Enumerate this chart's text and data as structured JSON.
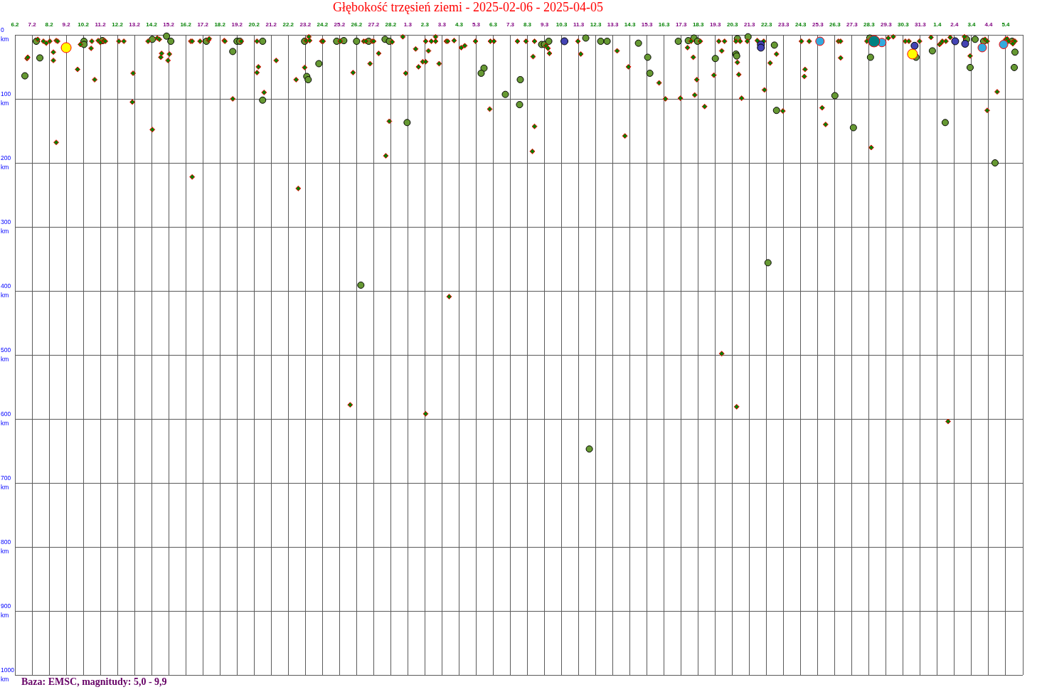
{
  "chart_data": {
    "type": "bubble",
    "title": "Głębokość trzęsień ziemi - 2025-02-06 - 2025-04-05",
    "annotations": [
      "Baza: EMSC, magnitudy: 5,0 - 9,9"
    ],
    "xlim": [
      "2025-02-06",
      "2025-04-06"
    ],
    "xticks": [
      {
        "value": "2025-02-06",
        "label": "6.2"
      },
      {
        "value": "2025-02-07",
        "label": "7.2"
      },
      {
        "value": "2025-02-08",
        "label": "8.2"
      },
      {
        "value": "2025-02-09",
        "label": "9.2"
      },
      {
        "value": "2025-02-10",
        "label": "10.2"
      },
      {
        "value": "2025-02-11",
        "label": "11.2"
      },
      {
        "value": "2025-02-12",
        "label": "12.2"
      },
      {
        "value": "2025-02-13",
        "label": "13.2"
      },
      {
        "value": "2025-02-14",
        "label": "14.2"
      },
      {
        "value": "2025-02-15",
        "label": "15.2"
      },
      {
        "value": "2025-02-16",
        "label": "16.2"
      },
      {
        "value": "2025-02-17",
        "label": "17.2"
      },
      {
        "value": "2025-02-18",
        "label": "18.2"
      },
      {
        "value": "2025-02-19",
        "label": "19.2"
      },
      {
        "value": "2025-02-20",
        "label": "20.2"
      },
      {
        "value": "2025-02-21",
        "label": "21.2"
      },
      {
        "value": "2025-02-22",
        "label": "22.2"
      },
      {
        "value": "2025-02-23",
        "label": "23.2"
      },
      {
        "value": "2025-02-24",
        "label": "24.2"
      },
      {
        "value": "2025-02-25",
        "label": "25.2"
      },
      {
        "value": "2025-02-26",
        "label": "26.2"
      },
      {
        "value": "2025-02-27",
        "label": "27.2"
      },
      {
        "value": "2025-02-28",
        "label": "28.2"
      },
      {
        "value": "2025-03-01",
        "label": "1.3"
      },
      {
        "value": "2025-03-02",
        "label": "2.3"
      },
      {
        "value": "2025-03-03",
        "label": "3.3"
      },
      {
        "value": "2025-03-04",
        "label": "4.3"
      },
      {
        "value": "2025-03-05",
        "label": "5.3"
      },
      {
        "value": "2025-03-06",
        "label": "6.3"
      },
      {
        "value": "2025-03-07",
        "label": "7.3"
      },
      {
        "value": "2025-03-08",
        "label": "8.3"
      },
      {
        "value": "2025-03-09",
        "label": "9.3"
      },
      {
        "value": "2025-03-10",
        "label": "10.3"
      },
      {
        "value": "2025-03-11",
        "label": "11.3"
      },
      {
        "value": "2025-03-12",
        "label": "12.3"
      },
      {
        "value": "2025-03-13",
        "label": "13.3"
      },
      {
        "value": "2025-03-14",
        "label": "14.3"
      },
      {
        "value": "2025-03-15",
        "label": "15.3"
      },
      {
        "value": "2025-03-16",
        "label": "16.3"
      },
      {
        "value": "2025-03-17",
        "label": "17.3"
      },
      {
        "value": "2025-03-18",
        "label": "18.3"
      },
      {
        "value": "2025-03-19",
        "label": "19.3"
      },
      {
        "value": "2025-03-20",
        "label": "20.3"
      },
      {
        "value": "2025-03-21",
        "label": "21.3"
      },
      {
        "value": "2025-03-22",
        "label": "22.3"
      },
      {
        "value": "2025-03-23",
        "label": "23.3"
      },
      {
        "value": "2025-03-24",
        "label": "24.3"
      },
      {
        "value": "2025-03-25",
        "label": "25.3"
      },
      {
        "value": "2025-03-26",
        "label": "26.3"
      },
      {
        "value": "2025-03-27",
        "label": "27.3"
      },
      {
        "value": "2025-03-28",
        "label": "28.3"
      },
      {
        "value": "2025-03-29",
        "label": "29.3"
      },
      {
        "value": "2025-03-30",
        "label": "30.3"
      },
      {
        "value": "2025-03-31",
        "label": "31.3"
      },
      {
        "value": "2025-04-01",
        "label": "1.4"
      },
      {
        "value": "2025-04-02",
        "label": "2.4"
      },
      {
        "value": "2025-04-03",
        "label": "3.4"
      },
      {
        "value": "2025-04-04",
        "label": "4.4"
      },
      {
        "value": "2025-04-05",
        "label": "5.4"
      },
      {
        "value": "2025-04-06",
        "label": null
      }
    ],
    "ylim": [
      1000,
      0
    ],
    "yticks": [
      {
        "value": 0,
        "label": "0 km"
      },
      {
        "value": 100,
        "label": "100 km"
      },
      {
        "value": 200,
        "label": "200 km"
      },
      {
        "value": 300,
        "label": "300 km"
      },
      {
        "value": 400,
        "label": "400 km"
      },
      {
        "value": 500,
        "label": "500 km"
      },
      {
        "value": 600,
        "label": "600 km"
      },
      {
        "value": 700,
        "label": "700 km"
      },
      {
        "value": 800,
        "label": "800 km"
      },
      {
        "value": 900,
        "label": "900 km"
      },
      {
        "value": 1000,
        "label": "1000 km"
      }
    ],
    "grid": true,
    "series": [
      {
        "color": "#669933",
        "marker": "circle",
        "x": [
          "2025-02-06T14:00",
          "2025-02-07T06:00",
          "2025-02-07T11:00",
          "2025-02-10T01:00",
          "2025-02-10T01:00",
          "2025-02-11T03:00",
          "2025-02-14T01:00",
          "2025-02-14T21:00",
          "2025-02-15T03:00",
          "2025-02-17T05:00",
          "2025-02-18T18:00",
          "2025-02-19T00:00",
          "2025-02-19T04:00",
          "2025-02-20T12:00",
          "2025-02-20T12:00",
          "2025-02-22T23:00",
          "2025-02-23T02:00",
          "2025-02-23T04:00",
          "2025-02-23T19:00",
          "2025-02-24T20:00",
          "2025-02-25T06:00",
          "2025-02-26T00:00",
          "2025-02-26T17:00",
          "2025-02-26T06:00",
          "2025-02-27T16:00",
          "2025-02-27T22:00",
          "2025-02-28T23:00",
          "2025-03-05T11:00",
          "2025-03-05T07:00",
          "2025-03-06T17:00",
          "2025-03-07T14:00",
          "2025-03-07T13:00",
          "2025-03-08T20:00",
          "2025-03-09T00:00",
          "2025-03-09T06:00",
          "2025-03-11T10:00",
          "2025-03-11T15:00",
          "2025-03-12T07:00",
          "2025-03-12T16:00",
          "2025-03-14T12:00",
          "2025-03-15T01:00",
          "2025-03-15T04:00",
          "2025-03-16T20:00",
          "2025-03-17T10:00",
          "2025-03-17T18:00",
          "2025-03-17T23:00",
          "2025-03-19T00:00",
          "2025-03-20T07:00",
          "2025-03-20T05:00",
          "2025-03-20T06:00",
          "2025-03-20T22:00",
          "2025-03-22T11:00",
          "2025-03-22T14:00",
          "2025-03-22T02:00",
          "2025-03-26T00:00",
          "2025-03-27T02:00",
          "2025-03-28T01:00",
          "2025-03-28T02:00",
          "2025-03-30T18:00",
          "2025-03-31T17:00",
          "2025-04-01T11:00",
          "2025-04-02T17:00",
          "2025-04-03T05:00",
          "2025-04-02T22:00",
          "2025-04-03T17:00",
          "2025-04-05T09:00",
          "2025-04-05T13:00",
          "2025-04-05T12:00",
          "2025-04-04T09:00"
        ],
        "values": [
          64,
          10,
          36,
          10,
          15,
          9,
          7,
          2,
          10,
          10,
          26,
          10,
          10,
          10,
          102,
          10,
          65,
          70,
          45,
          10,
          9,
          10,
          10,
          391,
          7,
          10,
          137,
          52,
          60,
          93,
          70,
          109,
          15,
          15,
          10,
          5,
          647,
          10,
          10,
          13,
          35,
          60,
          10,
          9,
          5,
          10,
          37,
          6,
          30,
          33,
          3,
          16,
          118,
          356,
          95,
          145,
          5,
          35,
          35,
          25,
          137,
          7,
          7,
          51,
          10,
          10,
          27,
          51,
          200
        ],
        "sizes": [
          0.32,
          0.32,
          0.32,
          0.32,
          0.32,
          0.32,
          0.32,
          0.32,
          0.32,
          0.32,
          0.32,
          0.32,
          0.32,
          0.32,
          0.32,
          0.32,
          0.32,
          0.32,
          0.32,
          0.32,
          0.32,
          0.32,
          0.32,
          0.32,
          0.32,
          0.32,
          0.32,
          0.32,
          0.32,
          0.32,
          0.32,
          0.32,
          0.32,
          0.32,
          0.32,
          0.32,
          0.32,
          0.32,
          0.32,
          0.32,
          0.32,
          0.32,
          0.32,
          0.32,
          0.32,
          0.32,
          0.32,
          0.32,
          0.32,
          0.32,
          0.32,
          0.32,
          0.32,
          0.32,
          0.32,
          0.32,
          0.32,
          0.32,
          0.32,
          0.32,
          0.32,
          0.32,
          0.32,
          0.32,
          0.32,
          0.32,
          0.32,
          0.32,
          0.32
        ]
      },
      {
        "color": "#008000",
        "marker": "diamond",
        "x": [
          "2025-02-06T17:00",
          "2025-02-06T18:00",
          "2025-02-07T08:00",
          "2025-02-07T16:00",
          "2025-02-07T20:00",
          "2025-02-08T01:00",
          "2025-02-08T06:00",
          "2025-02-08T06:00",
          "2025-02-08T10:00",
          "2025-02-08T12:00",
          "2025-02-08T10:00",
          "2025-02-09T16:00",
          "2025-02-09T20:00",
          "2025-02-10T11:00",
          "2025-02-10T12:00",
          "2025-02-10T16:00",
          "2025-02-10T21:00",
          "2025-02-11T00:00",
          "2025-02-11T05:00",
          "2025-02-11T07:00",
          "2025-02-12T02:00",
          "2025-02-12T09:00",
          "2025-02-12T22:00",
          "2025-02-12T21:00",
          "2025-02-13T19:00",
          "2025-02-14T08:00",
          "2025-02-14T11:00",
          "2025-02-14T14:00",
          "2025-02-14T13:00",
          "2025-02-14T01:00",
          "2025-02-14T23:00",
          "2025-02-15T01:00",
          "2025-02-16T09:00",
          "2025-02-16T07:00",
          "2025-02-16T09:00",
          "2025-02-16T20:00",
          "2025-02-17T08:00",
          "2025-02-17T09:00",
          "2025-02-18T06:00",
          "2025-02-18T07:00",
          "2025-02-18T18:00",
          "2025-02-19T06:00",
          "2025-02-20T04:00",
          "2025-02-20T04:00",
          "2025-02-20T06:00",
          "2025-02-20T14:00",
          "2025-02-21T07:00",
          "2025-02-22T11:00",
          "2025-02-22T14:00",
          "2025-02-22T23:00",
          "2025-02-23T01:00",
          "2025-02-23T05:00",
          "2025-02-23T06:00",
          "2025-02-23T23:00",
          "2025-02-24T01:00",
          "2025-02-25T01:00",
          "2025-02-25T19:00",
          "2025-02-25T15:00",
          "2025-02-26T10:00",
          "2025-02-26T13:00",
          "2025-02-26T22:00",
          "2025-02-27T00:00",
          "2025-02-26T19:00",
          "2025-02-27T07:00",
          "2025-02-28T02:00",
          "2025-02-27T17:00",
          "2025-02-28T17:00",
          "2025-02-28T21:00",
          "2025-02-27T22:00",
          "2025-03-01T11:00",
          "2025-03-01T15:00",
          "2025-03-01T21:00",
          "2025-03-02T01:00",
          "2025-03-02T01:00",
          "2025-03-02T05:00",
          "2025-03-02T09:00",
          "2025-03-02T15:00",
          "2025-03-02T15:00",
          "2025-03-02T20:00",
          "2025-03-02T01:00",
          "2025-03-03T06:00",
          "2025-03-03T08:00",
          "2025-03-03T17:00",
          "2025-03-03T10:00",
          "2025-03-04T03:00",
          "2025-03-04T08:00",
          "2025-03-04T23:00",
          "2025-03-05T20:00",
          "2025-03-06T01:00",
          "2025-03-05T19:00",
          "2025-03-07T10:00",
          "2025-03-07T22:00",
          "2025-03-08T08:00",
          "2025-03-08T10:00",
          "2025-03-08T10:00",
          "2025-03-08T07:00",
          "2025-03-09T02:00",
          "2025-03-09T05:00",
          "2025-03-09T07:00",
          "2025-03-10T23:00",
          "2025-03-11T03:00",
          "2025-03-13T06:00",
          "2025-03-13T17:00",
          "2025-03-13T22:00",
          "2025-03-15T17:00",
          "2025-03-16T02:00",
          "2025-03-16T23:00",
          "2025-03-17T09:00",
          "2025-03-17T14:00",
          "2025-03-17T17:00",
          "2025-03-17T19:00",
          "2025-03-17T22:00",
          "2025-03-18T03:00",
          "2025-03-18T09:00",
          "2025-03-18T22:00",
          "2025-03-19T05:00",
          "2025-03-19T13:00",
          "2025-03-19T09:00",
          "2025-03-19T09:00",
          "2025-03-20T05:00",
          "2025-03-20T11:00",
          "2025-03-20T07:00",
          "2025-03-20T09:00",
          "2025-03-20T13:00",
          "2025-03-20T06:00",
          "2025-03-20T21:00",
          "2025-03-21T11:00",
          "2025-03-21T20:00",
          "2025-03-21T21:00",
          "2025-03-22T14:00",
          "2025-03-22T05:00",
          "2025-03-22T23:00",
          "2025-03-24T01:00",
          "2025-03-24T12:00",
          "2025-03-24T06:00",
          "2025-03-24T05:00",
          "2025-03-25T06:00",
          "2025-03-25T11:00",
          "2025-03-26T05:00",
          "2025-03-26T08:00",
          "2025-03-26T08:00",
          "2025-03-28T03:00",
          "2025-03-27T21:00",
          "2025-03-29T03:00",
          "2025-03-29T10:00",
          "2025-03-30T03:00",
          "2025-03-30T08:00",
          "2025-03-30T23:00",
          "2025-03-31T15:00",
          "2025-04-01T03:00",
          "2025-04-01T05:00",
          "2025-04-01T07:00",
          "2025-04-01T12:00",
          "2025-04-01T18:00",
          "2025-04-01T15:00",
          "2025-04-02T14:00",
          "2025-04-02T22:00",
          "2025-04-03T19:00",
          "2025-04-03T22:00",
          "2025-04-04T12:00",
          "2025-04-03T22:00",
          "2025-04-05T00:00",
          "2025-04-05T02:00",
          "2025-04-05T04:00",
          "2025-04-05T11:00",
          "2025-04-05T13:00",
          "2025-04-05T10:00"
        ],
        "values": [
          37,
          35,
          7,
          10,
          13,
          10,
          27,
          40,
          9,
          10,
          168,
          54,
          15,
          21,
          10,
          70,
          9,
          12,
          9,
          10,
          10,
          10,
          60,
          105,
          10,
          5,
          7,
          29,
          35,
          148,
          40,
          30,
          222,
          10,
          10,
          10,
          8,
          6,
          9,
          10,
          100,
          10,
          10,
          59,
          50,
          90,
          40,
          70,
          240,
          51,
          9,
          3,
          9,
          10,
          10,
          10,
          59,
          578,
          10,
          10,
          10,
          10,
          45,
          29,
          11,
          189,
          3,
          60,
          135,
          22,
          50,
          42,
          42,
          10,
          25,
          10,
          3,
          10,
          45,
          592,
          10,
          10,
          9,
          409,
          20,
          17,
          10,
          10,
          10,
          116,
          10,
          10,
          34,
          10,
          143,
          182,
          17,
          21,
          29,
          10,
          30,
          25,
          158,
          50,
          75,
          100,
          99,
          20,
          10,
          35,
          94,
          70,
          10,
          112,
          63,
          10,
          10,
          25,
          498,
          10,
          10,
          43,
          62,
          99,
          581,
          10,
          9,
          10,
          86,
          30,
          44,
          119,
          10,
          10,
          54,
          65,
          114,
          140,
          10,
          10,
          36,
          176,
          10,
          5,
          3,
          10,
          10,
          10,
          4,
          15,
          13,
          10,
          10,
          4,
          604,
          3,
          33,
          7,
          10,
          89,
          118,
          7,
          6,
          10,
          10,
          10,
          14
        ],
        "sizes": [
          0.19,
          0.19,
          0.19,
          0.19,
          0.19,
          0.19,
          0.19,
          0.19,
          0.19,
          0.19,
          0.19,
          0.19,
          0.19,
          0.19,
          0.19,
          0.19,
          0.19,
          0.19,
          0.19,
          0.19,
          0.19,
          0.19,
          0.19,
          0.19,
          0.19,
          0.19,
          0.19,
          0.19,
          0.19,
          0.19,
          0.19,
          0.19,
          0.19,
          0.19,
          0.19,
          0.19,
          0.19,
          0.19,
          0.19,
          0.19,
          0.19,
          0.19,
          0.19,
          0.19,
          0.19,
          0.19,
          0.19,
          0.19,
          0.19,
          0.19,
          0.19,
          0.19,
          0.19,
          0.19,
          0.19,
          0.19,
          0.19,
          0.19,
          0.19,
          0.19,
          0.19,
          0.19,
          0.19,
          0.19,
          0.19,
          0.19,
          0.19,
          0.19,
          0.19,
          0.19,
          0.19,
          0.19,
          0.19,
          0.19,
          0.19,
          0.19,
          0.19,
          0.19,
          0.19,
          0.19,
          0.19,
          0.19,
          0.19,
          0.19,
          0.19,
          0.19,
          0.19,
          0.19,
          0.19,
          0.19,
          0.19,
          0.19,
          0.19,
          0.19,
          0.19,
          0.19,
          0.19,
          0.19,
          0.19,
          0.19,
          0.19,
          0.19,
          0.19,
          0.19,
          0.19,
          0.19,
          0.19,
          0.19,
          0.19,
          0.19,
          0.19,
          0.19,
          0.19,
          0.19,
          0.19,
          0.19,
          0.19,
          0.19,
          0.19,
          0.19,
          0.19,
          0.19,
          0.19,
          0.19,
          0.19,
          0.19,
          0.19,
          0.19,
          0.19,
          0.19,
          0.19,
          0.19,
          0.19,
          0.19,
          0.19,
          0.19,
          0.19,
          0.19,
          0.19,
          0.19,
          0.19,
          0.19,
          0.19,
          0.19,
          0.19,
          0.19,
          0.19,
          0.19,
          0.19,
          0.19,
          0.19,
          0.19,
          0.19,
          0.19,
          0.19,
          0.19,
          0.19,
          0.19,
          0.19,
          0.19,
          0.19,
          0.19,
          0.19,
          0.19,
          0.19,
          0.19,
          0.19
        ]
      },
      {
        "color": "#4444b4",
        "marker": "circle",
        "x": [
          "2025-03-10T04:00",
          "2025-03-21T16:00",
          "2025-03-21T16:00",
          "2025-03-30T16:00",
          "2025-04-02T01:00",
          "2025-04-02T15:00"
        ],
        "values": [
          10,
          15,
          20,
          17,
          10,
          14
        ],
        "sizes": [
          0.39,
          0.39,
          0.39,
          0.39,
          0.39,
          0.39
        ]
      },
      {
        "color": "#33aadd",
        "marker": "circle",
        "x": [
          "2025-03-25T03:00",
          "2025-03-28T18:00",
          "2025-04-03T15:00",
          "2025-04-04T21:00"
        ],
        "values": [
          10,
          12,
          20,
          15
        ],
        "sizes": [
          0.56,
          0.56,
          0.56,
          0.56
        ]
      },
      {
        "color": "#ffff00",
        "marker": "circle",
        "x": [
          "2025-02-09T00:00",
          "2025-03-30T13:00"
        ],
        "values": [
          20,
          30
        ],
        "sizes": [
          0.77,
          0.77
        ]
      },
      {
        "color": "#008080",
        "marker": "circle",
        "x": [
          "2025-03-28T07:00"
        ],
        "values": [
          10
        ],
        "sizes": [
          1
        ]
      }
    ]
  }
}
